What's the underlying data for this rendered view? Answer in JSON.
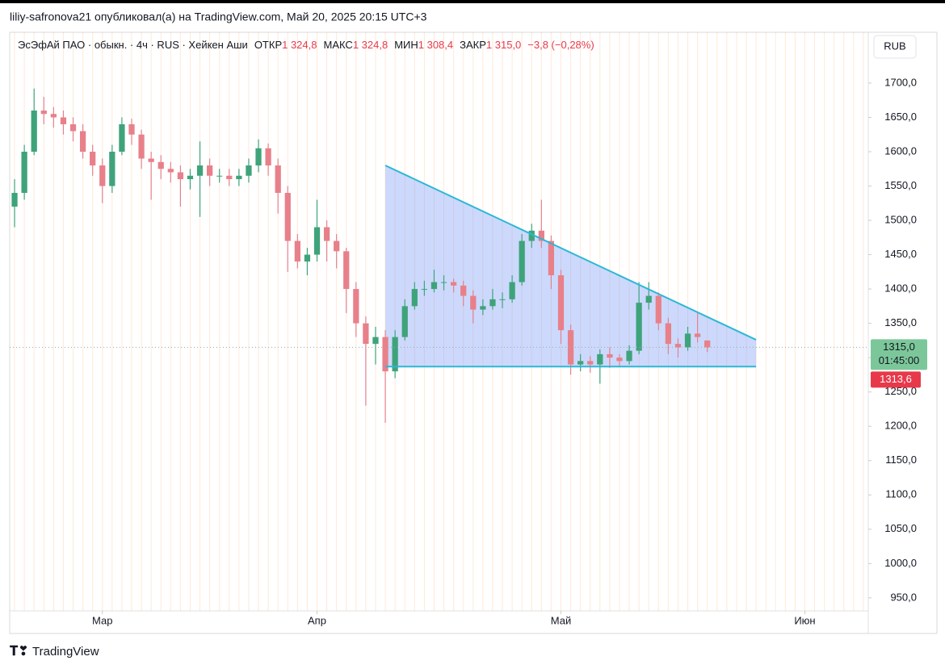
{
  "header": {
    "publisher": "liliy-safronova21 опубликовал(а) на TradingView.com, Май 20, 2025 20:15 UTC+3",
    "symbol": "ЭсЭфАй ПАО · обыкн. · 4ч · RUS · Хейкен Аши",
    "ohlc": [
      {
        "label": "ОТКР",
        "value": "1 324,8"
      },
      {
        "label": "МАКС",
        "value": "1 324,8"
      },
      {
        "label": "МИН",
        "value": "1 308,4"
      },
      {
        "label": "ЗАКР",
        "value": "1 315,0"
      }
    ],
    "change": "−3,8 (−0,28%)",
    "currency": "RUB",
    "logo": "TradingView"
  },
  "chart_data": {
    "type": "candlestick",
    "categories": [
      null,
      null,
      null,
      null,
      null,
      null,
      null,
      null,
      null,
      "Мар",
      null,
      null,
      null,
      null,
      null,
      null,
      null,
      null,
      null,
      null,
      null,
      null,
      null,
      null,
      null,
      null,
      null,
      null,
      null,
      null,
      null,
      "Апр",
      null,
      null,
      null,
      null,
      null,
      null,
      null,
      null,
      null,
      null,
      null,
      null,
      null,
      null,
      null,
      null,
      null,
      null,
      null,
      null,
      null,
      null,
      null,
      null,
      "Май",
      null,
      null,
      null,
      null,
      null,
      null,
      null,
      null,
      null,
      null,
      null,
      null,
      null,
      null,
      null,
      null,
      null,
      null,
      null,
      null,
      null,
      null,
      null,
      null,
      "Июн",
      null,
      null,
      null,
      null,
      null,
      null
    ],
    "series": [
      {
        "up_color": "#3fa37a",
        "down_color": "#e8808a",
        "open": [
          1520,
          1540,
          1600,
          1660,
          1655,
          1650,
          1640,
          1630,
          1600,
          1580,
          1550,
          1600,
          1640,
          1625,
          1590,
          1585,
          1575,
          1570,
          1560,
          1565,
          1580,
          1565,
          1565,
          1560,
          1565,
          1580,
          1605,
          1580,
          1540,
          1470,
          1440,
          1450,
          1490,
          1470,
          1455,
          1400,
          1350,
          1320,
          1330,
          1280,
          1330,
          1375,
          1400,
          1400,
          1410,
          1410,
          1405,
          1390,
          1370,
          1375,
          1385,
          1385,
          1410,
          1470,
          1485,
          1470,
          1420,
          1340,
          1290,
          1295,
          1290,
          1305,
          1300,
          1295,
          1310,
          1380,
          1390,
          1350,
          1320,
          1315,
          1335,
          1325
        ],
        "high": [
          1560,
          1610,
          1692,
          1680,
          1665,
          1660,
          1650,
          1640,
          1610,
          1590,
          1610,
          1650,
          1648,
          1632,
          1600,
          1595,
          1585,
          1580,
          1575,
          1615,
          1590,
          1575,
          1575,
          1575,
          1590,
          1618,
          1612,
          1590,
          1550,
          1480,
          1460,
          1530,
          1500,
          1480,
          1460,
          1410,
          1360,
          1345,
          1340,
          1340,
          1385,
          1410,
          1412,
          1428,
          1420,
          1415,
          1412,
          1398,
          1385,
          1400,
          1395,
          1420,
          1480,
          1495,
          1530,
          1478,
          1428,
          1348,
          1305,
          1302,
          1312,
          1315,
          1305,
          1318,
          1410,
          1410,
          1395,
          1358,
          1328,
          1345,
          1365,
          1325
        ],
        "low": [
          1490,
          1530,
          1595,
          1640,
          1635,
          1625,
          1615,
          1590,
          1565,
          1525,
          1540,
          1595,
          1610,
          1575,
          1530,
          1560,
          1555,
          1520,
          1545,
          1505,
          1550,
          1555,
          1550,
          1550,
          1555,
          1570,
          1565,
          1510,
          1425,
          1430,
          1420,
          1440,
          1440,
          1430,
          1365,
          1330,
          1230,
          1290,
          1205,
          1270,
          1325,
          1370,
          1390,
          1395,
          1398,
          1395,
          1375,
          1350,
          1362,
          1370,
          1372,
          1380,
          1405,
          1460,
          1460,
          1400,
          1320,
          1275,
          1280,
          1278,
          1262,
          1285,
          1288,
          1290,
          1305,
          1370,
          1340,
          1305,
          1300,
          1310,
          1322,
          1308
        ],
        "close": [
          1540,
          1600,
          1660,
          1655,
          1650,
          1640,
          1630,
          1600,
          1580,
          1550,
          1600,
          1640,
          1625,
          1590,
          1585,
          1575,
          1570,
          1560,
          1565,
          1580,
          1565,
          1565,
          1560,
          1565,
          1580,
          1605,
          1580,
          1540,
          1470,
          1440,
          1450,
          1490,
          1470,
          1455,
          1400,
          1350,
          1320,
          1330,
          1280,
          1330,
          1375,
          1400,
          1400,
          1410,
          1410,
          1405,
          1390,
          1370,
          1375,
          1385,
          1385,
          1410,
          1470,
          1485,
          1470,
          1420,
          1340,
          1290,
          1295,
          1290,
          1305,
          1300,
          1295,
          1310,
          1380,
          1390,
          1350,
          1320,
          1315,
          1335,
          1330,
          1315
        ]
      }
    ],
    "ylim": [
      931,
      1774
    ],
    "yticks": [
      {
        "value": 950,
        "label": "950,0"
      },
      {
        "value": 1000,
        "label": "1000,0"
      },
      {
        "value": 1050,
        "label": "1050,0"
      },
      {
        "value": 1100,
        "label": "1100,0"
      },
      {
        "value": 1150,
        "label": "1150,0"
      },
      {
        "value": 1200,
        "label": "1200,0"
      },
      {
        "value": 1250,
        "label": "1250,0"
      },
      {
        "value": 1300,
        "label": "1300,0"
      },
      {
        "value": 1350,
        "label": "1350,0"
      },
      {
        "value": 1400,
        "label": "1400,0"
      },
      {
        "value": 1450,
        "label": "1450,0"
      },
      {
        "value": 1500,
        "label": "1500,0"
      },
      {
        "value": 1550,
        "label": "1550,0"
      },
      {
        "value": 1600,
        "label": "1600,0"
      },
      {
        "value": 1650,
        "label": "1650,0"
      },
      {
        "value": 1700,
        "label": "1700,0"
      }
    ],
    "grid": true,
    "pattern": {
      "start": 38,
      "end": 76,
      "upper": [
        1580,
        1326
      ],
      "lower": 1287,
      "stroke": "#2bb8d6",
      "fill": "rgba(110,145,245,0.35)"
    },
    "last_price": {
      "value": 1315,
      "label": "1315,0",
      "countdown": "01:45:00",
      "color": "#7cc79a"
    },
    "prev_price": {
      "value": 1313.6,
      "label": "1313,6",
      "color": "#e8394a"
    }
  }
}
